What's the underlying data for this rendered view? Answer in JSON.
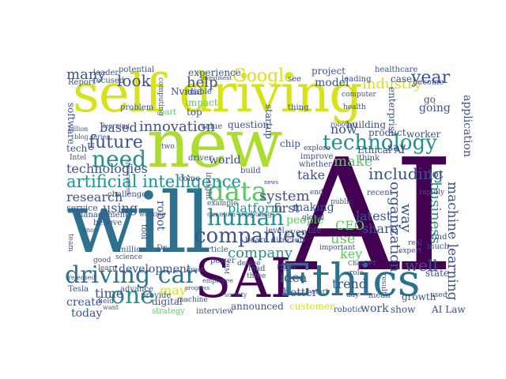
{
  "palette": {
    "dark_purple": "#440154",
    "teal_dark": "#2c728e",
    "teal": "#21918c",
    "green": "#3b528b",
    "light_green": "#5ec962",
    "yellow": "#d8e219",
    "lime": "#addc30",
    "blue_gray": "#31688e"
  },
  "words": [
    {
      "text": "AI"
    },
    {
      "text": "will"
    },
    {
      "text": "self driving"
    },
    {
      "text": "new"
    },
    {
      "text": "SAI"
    },
    {
      "text": "Ethics"
    },
    {
      "text": "technology"
    },
    {
      "text": "companies"
    },
    {
      "text": "data"
    },
    {
      "text": "human"
    },
    {
      "text": "artificial intelligence"
    },
    {
      "text": "driving car"
    },
    {
      "text": "one"
    },
    {
      "text": "need"
    },
    {
      "text": "future"
    },
    {
      "text": "Google"
    },
    {
      "text": "company"
    },
    {
      "text": "platform"
    },
    {
      "text": "system"
    },
    {
      "text": "innovation"
    },
    {
      "text": "year"
    },
    {
      "text": "industry"
    },
    {
      "text": "machine learning"
    },
    {
      "text": "business"
    },
    {
      "text": "organization"
    },
    {
      "text": "look"
    },
    {
      "text": "help"
    },
    {
      "text": "many"
    },
    {
      "text": "based"
    },
    {
      "text": "technologies"
    },
    {
      "text": "research"
    },
    {
      "text": "using"
    },
    {
      "text": "make"
    },
    {
      "text": "take"
    },
    {
      "text": "including"
    },
    {
      "text": "way"
    },
    {
      "text": "application"
    },
    {
      "text": "well"
    },
    {
      "text": "trend"
    },
    {
      "text": "customer"
    },
    {
      "text": "announced"
    },
    {
      "text": "time"
    },
    {
      "text": "may"
    },
    {
      "text": "development"
    },
    {
      "text": "create"
    },
    {
      "text": "today"
    },
    {
      "text": "robot"
    },
    {
      "text": "use"
    },
    {
      "text": "CEO"
    },
    {
      "text": "latest"
    },
    {
      "text": "share"
    },
    {
      "text": "key"
    },
    {
      "text": "people"
    },
    {
      "text": "idea"
    },
    {
      "text": "better"
    },
    {
      "text": "work"
    },
    {
      "text": "show"
    },
    {
      "text": "AI Law"
    },
    {
      "text": "first"
    },
    {
      "text": "making"
    },
    {
      "text": "even"
    },
    {
      "text": "life"
    },
    {
      "text": "world"
    },
    {
      "text": "now"
    },
    {
      "text": "question"
    },
    {
      "text": "building"
    },
    {
      "text": "model"
    },
    {
      "text": "tech"
    },
    {
      "text": "Nvidia"
    },
    {
      "text": "impact"
    },
    {
      "text": "experience"
    },
    {
      "text": "startup"
    },
    {
      "text": "chip"
    },
    {
      "text": "build"
    },
    {
      "text": "come"
    },
    {
      "text": "challenge"
    },
    {
      "text": "service"
    },
    {
      "text": "management"
    },
    {
      "text": "Tesla"
    },
    {
      "text": "digital"
    },
    {
      "text": "strategy"
    },
    {
      "text": "interview"
    },
    {
      "text": "robotic"
    },
    {
      "text": "growth"
    },
    {
      "text": "state"
    },
    {
      "text": "Ethical AI"
    },
    {
      "text": "say"
    },
    {
      "text": "think"
    },
    {
      "text": "project"
    },
    {
      "text": "leading"
    },
    {
      "text": "healthcare"
    },
    {
      "text": "case"
    },
    {
      "text": "become"
    },
    {
      "text": "enterprise"
    },
    {
      "text": "going"
    },
    {
      "text": "go"
    },
    {
      "text": "product"
    },
    {
      "text": "worker"
    },
    {
      "text": "lot"
    },
    {
      "text": "software"
    },
    {
      "text": "focused"
    },
    {
      "text": "leader"
    },
    {
      "text": "potential"
    },
    {
      "text": "Report"
    },
    {
      "text": "problem"
    },
    {
      "text": "blog series"
    },
    {
      "text": "Intel"
    },
    {
      "text": "believe"
    },
    {
      "text": "million"
    },
    {
      "text": "science"
    },
    {
      "text": "good"
    },
    {
      "text": "team"
    },
    {
      "text": "power"
    },
    {
      "text": "article"
    },
    {
      "text": "board director"
    },
    {
      "text": "level"
    },
    {
      "text": "global"
    },
    {
      "text": "recent"
    },
    {
      "text": "public"
    },
    {
      "text": "important"
    },
    {
      "text": "ChatGPT"
    },
    {
      "text": "advance"
    },
    {
      "text": "provide"
    },
    {
      "text": "machine"
    },
    {
      "text": "society"
    },
    {
      "text": "lead"
    },
    {
      "text": "three"
    },
    {
      "text": "start"
    },
    {
      "text": "right"
    },
    {
      "text": "end"
    },
    {
      "text": "whether"
    },
    {
      "text": "improve"
    },
    {
      "text": "explore"
    },
    {
      "text": "robotaxi"
    },
    {
      "text": "computing"
    },
    {
      "text": "enable"
    },
    {
      "text": "top"
    },
    {
      "text": "value"
    },
    {
      "text": "part"
    },
    {
      "text": "two"
    },
    {
      "text": "driver"
    },
    {
      "text": "example"
    },
    {
      "text": "quantum computing"
    },
    {
      "text": "Dr"
    },
    {
      "text": "working"
    },
    {
      "text": "tool"
    },
    {
      "text": "insight"
    },
    {
      "text": "rapidly"
    },
    {
      "text": "mean"
    },
    {
      "text": "day"
    },
    {
      "text": "result"
    },
    {
      "text": "find"
    },
    {
      "text": "much"
    },
    {
      "text": "real"
    },
    {
      "text": "expert"
    },
    {
      "text": "used"
    },
    {
      "text": "learning"
    },
    {
      "text": "see"
    },
    {
      "text": "thing"
    },
    {
      "text": "health"
    },
    {
      "text": "computer"
    },
    {
      "text": "U"
    },
    {
      "text": "billion"
    },
    {
      "text": "IBM"
    },
    {
      "text": "device"
    },
    {
      "text": "role"
    },
    {
      "text": "employee"
    },
    {
      "text": "great"
    },
    {
      "text": "progress"
    },
    {
      "text": "field"
    },
    {
      "text": "want"
    },
    {
      "text": "released"
    },
    {
      "text": "learn"
    },
    {
      "text": "know"
    },
    {
      "text": "investment"
    },
    {
      "text": "government"
    },
    {
      "text": "news"
    }
  ]
}
